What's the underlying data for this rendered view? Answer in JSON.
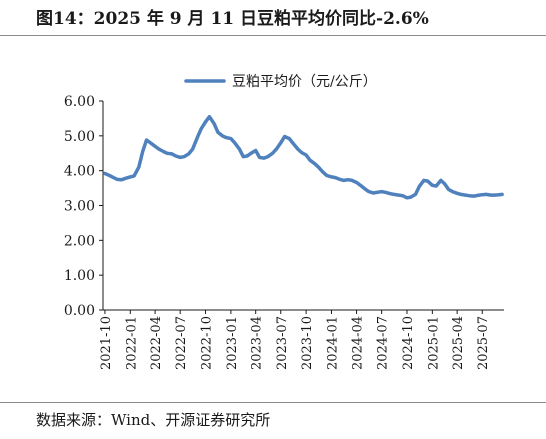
{
  "page": {
    "title": "图14：2025 年 9 月 11 日豆粕平均价同比-2.6%",
    "source": "数据来源：Wind、开源证券研究所"
  },
  "chart_data": {
    "type": "line",
    "title": "",
    "xlabel": "",
    "ylabel": "",
    "ylim": [
      0,
      6
    ],
    "yticks": [
      "0.00",
      "1.00",
      "2.00",
      "3.00",
      "4.00",
      "5.00",
      "6.00"
    ],
    "xticks": [
      "2021-10",
      "2022-01",
      "2022-04",
      "2022-07",
      "2022-10",
      "2023-01",
      "2023-04",
      "2023-07",
      "2023-10",
      "2024-01",
      "2024-04",
      "2024-07",
      "2024-10",
      "2025-01",
      "2025-04",
      "2025-07"
    ],
    "grid": false,
    "legend": "top-center",
    "colors": {
      "series": "#4f81bd",
      "axis": "#1a1a1a",
      "text": "#1a1a1a"
    },
    "series": [
      {
        "name": "豆粕平均价（元/公斤）",
        "x": [
          "2021-10-01",
          "2021-10-15",
          "2021-11-01",
          "2021-11-15",
          "2021-12-01",
          "2021-12-15",
          "2022-01-01",
          "2022-01-15",
          "2022-02-01",
          "2022-02-15",
          "2022-03-01",
          "2022-03-15",
          "2022-04-01",
          "2022-04-15",
          "2022-05-01",
          "2022-05-15",
          "2022-06-01",
          "2022-06-15",
          "2022-07-01",
          "2022-07-15",
          "2022-08-01",
          "2022-08-15",
          "2022-09-01",
          "2022-09-15",
          "2022-10-01",
          "2022-10-15",
          "2022-11-01",
          "2022-11-15",
          "2022-12-01",
          "2022-12-15",
          "2023-01-01",
          "2023-01-15",
          "2023-02-01",
          "2023-02-15",
          "2023-03-01",
          "2023-03-15",
          "2023-04-01",
          "2023-04-15",
          "2023-05-01",
          "2023-05-15",
          "2023-06-01",
          "2023-06-15",
          "2023-07-01",
          "2023-07-15",
          "2023-08-01",
          "2023-08-15",
          "2023-09-01",
          "2023-09-15",
          "2023-10-01",
          "2023-10-15",
          "2023-11-01",
          "2023-11-15",
          "2023-12-01",
          "2023-12-15",
          "2024-01-01",
          "2024-01-15",
          "2024-02-01",
          "2024-02-15",
          "2024-03-01",
          "2024-03-15",
          "2024-04-01",
          "2024-04-15",
          "2024-05-01",
          "2024-05-15",
          "2024-06-01",
          "2024-06-15",
          "2024-07-01",
          "2024-07-15",
          "2024-08-01",
          "2024-08-15",
          "2024-09-01",
          "2024-09-15",
          "2024-10-01",
          "2024-10-15",
          "2024-11-01",
          "2024-11-15",
          "2024-12-01",
          "2024-12-15",
          "2025-01-01",
          "2025-01-15",
          "2025-02-01",
          "2025-02-15",
          "2025-03-01",
          "2025-03-15",
          "2025-04-01",
          "2025-04-15",
          "2025-05-01",
          "2025-05-15",
          "2025-06-01",
          "2025-06-15",
          "2025-07-01",
          "2025-07-15",
          "2025-08-01",
          "2025-08-15",
          "2025-09-01",
          "2025-09-11"
        ],
        "values": [
          3.92,
          3.87,
          3.8,
          3.75,
          3.74,
          3.78,
          3.82,
          3.85,
          4.1,
          4.55,
          4.88,
          4.8,
          4.7,
          4.62,
          4.55,
          4.5,
          4.48,
          4.42,
          4.38,
          4.4,
          4.48,
          4.62,
          4.95,
          5.2,
          5.4,
          5.55,
          5.35,
          5.1,
          5.0,
          4.95,
          4.92,
          4.8,
          4.62,
          4.4,
          4.42,
          4.5,
          4.58,
          4.38,
          4.36,
          4.4,
          4.5,
          4.62,
          4.8,
          4.98,
          4.92,
          4.78,
          4.62,
          4.52,
          4.45,
          4.3,
          4.2,
          4.1,
          3.96,
          3.86,
          3.82,
          3.8,
          3.75,
          3.72,
          3.74,
          3.72,
          3.66,
          3.58,
          3.48,
          3.4,
          3.36,
          3.38,
          3.4,
          3.38,
          3.34,
          3.32,
          3.3,
          3.28,
          3.22,
          3.24,
          3.32,
          3.55,
          3.72,
          3.7,
          3.58,
          3.56,
          3.72,
          3.62,
          3.46,
          3.4,
          3.35,
          3.32,
          3.3,
          3.28,
          3.27,
          3.29,
          3.31,
          3.32,
          3.3,
          3.3,
          3.31,
          3.32
        ]
      }
    ]
  }
}
